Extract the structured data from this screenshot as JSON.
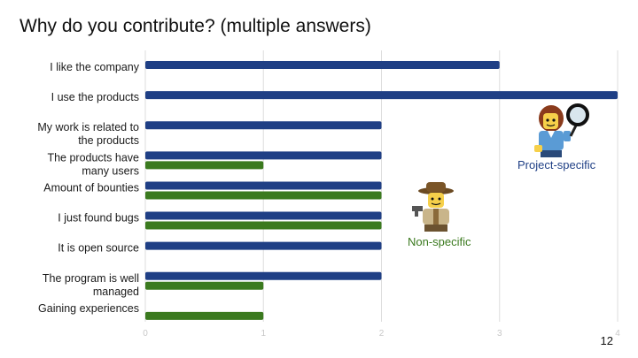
{
  "slide": {
    "title": "Why do you contribute? (multiple answers)",
    "page_number": "12"
  },
  "annotations": {
    "project_specific": "Project-specific",
    "non_specific": "Non-specific"
  },
  "colors": {
    "project_specific": "#1f3f85",
    "non_specific": "#3b7a1f",
    "grid": "#dddddd",
    "ticks": "#c8c8c8"
  },
  "chart_data": {
    "type": "bar",
    "orientation": "horizontal",
    "categories": [
      [
        "I like the company"
      ],
      [
        "I use the products"
      ],
      [
        "My work is related to",
        "the products"
      ],
      [
        "The products have",
        "many users"
      ],
      [
        "Amount of bounties"
      ],
      [
        "I just found bugs"
      ],
      [
        "It is open source"
      ],
      [
        "The program is well",
        "managed"
      ],
      [
        "Gaining experiences"
      ]
    ],
    "series": [
      {
        "values": [
          3,
          4,
          2,
          2,
          2,
          2,
          2,
          2,
          0
        ],
        "color": "#1f3f85"
      },
      {
        "values": [
          0,
          0,
          0,
          1,
          2,
          2,
          0,
          1,
          1
        ],
        "color": "#3b7a1f"
      }
    ],
    "xlim": [
      0,
      4
    ],
    "xticks": [
      0,
      1,
      2,
      3,
      4
    ],
    "grid": true,
    "legend": "none",
    "title": "",
    "xlabel": "",
    "ylabel": ""
  }
}
